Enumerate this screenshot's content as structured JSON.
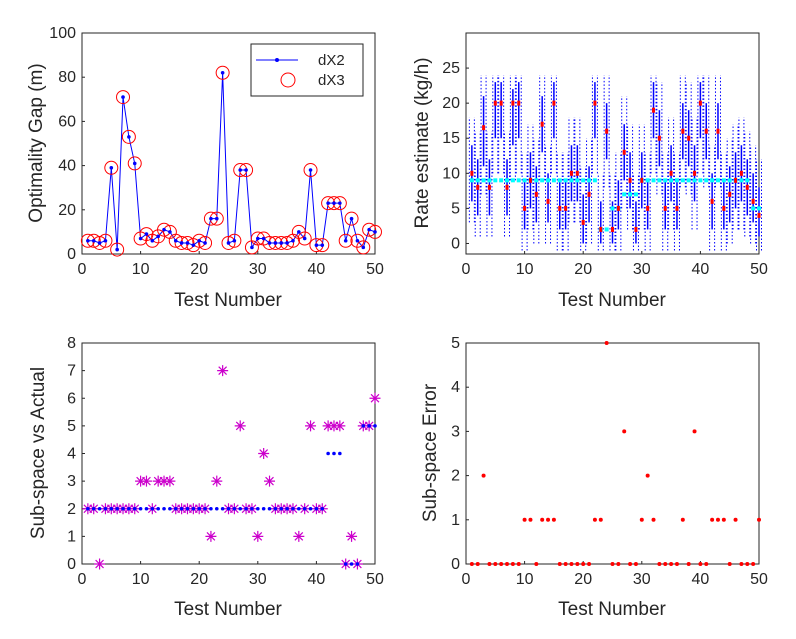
{
  "chart_data": [
    {
      "type": "line",
      "panel": "top-left",
      "xlabel": "Test Number",
      "ylabel": "Optimality Gap (m)",
      "xlim": [
        0,
        50
      ],
      "ylim": [
        0,
        100
      ],
      "xticks": [
        0,
        10,
        20,
        30,
        40,
        50
      ],
      "yticks": [
        0,
        20,
        40,
        60,
        80,
        100
      ],
      "legend_position": "top-right",
      "series": [
        {
          "name": "dX2",
          "style": "line-with-dots",
          "color": "#0000ff",
          "x": [
            1,
            2,
            3,
            4,
            5,
            6,
            7,
            8,
            9,
            10,
            11,
            12,
            13,
            14,
            15,
            16,
            17,
            18,
            19,
            20,
            21,
            22,
            23,
            24,
            25,
            26,
            27,
            28,
            29,
            30,
            31,
            32,
            33,
            34,
            35,
            36,
            37,
            38,
            39,
            40,
            41,
            42,
            43,
            44,
            45,
            46,
            47,
            48,
            49,
            50
          ],
          "values": [
            6,
            6,
            5,
            6,
            39,
            2,
            71,
            53,
            41,
            7,
            9,
            6,
            8,
            11,
            10,
            6,
            5,
            5,
            4,
            6,
            5,
            16,
            16,
            82,
            5,
            6,
            38,
            38,
            3,
            7,
            7,
            5,
            5,
            5,
            5,
            6,
            10,
            7,
            38,
            4,
            4,
            23,
            23,
            23,
            6,
            16,
            6,
            3,
            11,
            10
          ]
        },
        {
          "name": "dX3",
          "style": "open-circles",
          "color": "#ff0000",
          "x": [
            1,
            2,
            3,
            4,
            5,
            6,
            7,
            8,
            9,
            10,
            11,
            12,
            13,
            14,
            15,
            16,
            17,
            18,
            19,
            20,
            21,
            22,
            23,
            24,
            25,
            26,
            27,
            28,
            29,
            30,
            31,
            32,
            33,
            34,
            35,
            36,
            37,
            38,
            39,
            40,
            41,
            42,
            43,
            44,
            45,
            46,
            47,
            48,
            49,
            50
          ],
          "values": [
            6,
            6,
            5,
            6,
            39,
            2,
            71,
            53,
            41,
            7,
            9,
            6,
            8,
            11,
            10,
            6,
            5,
            5,
            4,
            6,
            5,
            16,
            16,
            82,
            5,
            6,
            38,
            38,
            3,
            7,
            7,
            5,
            5,
            5,
            5,
            6,
            10,
            7,
            38,
            4,
            4,
            23,
            23,
            23,
            6,
            16,
            6,
            3,
            11,
            10
          ]
        }
      ]
    },
    {
      "type": "errorbar",
      "panel": "top-right",
      "xlabel": "Test Number",
      "ylabel": "Rate estimate (kg/h)",
      "xlim": [
        0,
        50
      ],
      "ylim": [
        -1.5,
        30
      ],
      "xticks": [
        0,
        10,
        20,
        30,
        40,
        50
      ],
      "yticks": [
        0,
        5,
        10,
        15,
        20,
        25
      ],
      "x": [
        1,
        2,
        3,
        4,
        5,
        6,
        7,
        8,
        9,
        10,
        11,
        12,
        13,
        14,
        15,
        16,
        17,
        18,
        19,
        20,
        21,
        22,
        23,
        24,
        25,
        26,
        27,
        28,
        29,
        30,
        31,
        32,
        33,
        34,
        35,
        36,
        37,
        38,
        39,
        40,
        41,
        42,
        43,
        44,
        45,
        46,
        47,
        48,
        49,
        50
      ],
      "estimate": [
        10,
        8,
        16.5,
        8,
        20,
        20,
        8,
        20,
        20,
        5,
        9,
        7,
        17,
        6,
        20,
        5,
        5,
        10,
        10,
        3,
        7,
        20,
        2,
        16,
        2,
        5,
        13,
        9,
        2,
        9,
        5,
        19,
        15,
        5,
        10,
        5,
        16,
        15,
        10,
        20,
        16,
        6,
        16,
        5,
        7,
        9,
        10,
        8,
        6,
        4
      ],
      "inner_lo": [
        6,
        4,
        11,
        4,
        15,
        15,
        4,
        14,
        15,
        2,
        5,
        3,
        13,
        3,
        15,
        2,
        2,
        6,
        6,
        0,
        3,
        15,
        0,
        12,
        0,
        2,
        9,
        5,
        0,
        5,
        2,
        15,
        11,
        2,
        6,
        2,
        12,
        11,
        6,
        15,
        12,
        2,
        12,
        2,
        3,
        5,
        6,
        4,
        3,
        1
      ],
      "inner_hi": [
        14,
        12,
        21,
        12,
        23,
        23,
        12,
        22,
        23,
        9,
        13,
        11,
        21,
        10,
        23,
        9,
        9,
        14,
        14,
        7,
        11,
        23,
        6,
        20,
        6,
        9,
        17,
        13,
        6,
        13,
        9,
        23,
        19,
        9,
        14,
        9,
        20,
        19,
        14,
        23,
        20,
        10,
        20,
        9,
        11,
        13,
        14,
        12,
        10,
        8
      ],
      "outer_lo": [
        3,
        1,
        7,
        1,
        10,
        10,
        1,
        9,
        10,
        -1,
        2,
        0,
        9,
        0,
        10,
        -1,
        -1,
        3,
        3,
        -1,
        0,
        10,
        -1,
        8,
        -1,
        -1,
        5,
        2,
        -1,
        2,
        -1,
        10,
        7,
        -1,
        2,
        -1,
        8,
        7,
        2,
        10,
        8,
        -1,
        8,
        -1,
        0,
        2,
        2,
        1,
        0,
        -1
      ],
      "outer_hi": [
        18,
        16,
        24,
        16,
        24,
        24,
        16,
        24,
        24,
        13,
        17,
        15,
        24,
        14,
        24,
        13,
        13,
        18,
        18,
        11,
        15,
        24,
        10,
        24,
        10,
        13,
        21,
        17,
        10,
        17,
        13,
        24,
        23,
        13,
        18,
        13,
        24,
        23,
        18,
        24,
        24,
        14,
        24,
        13,
        15,
        17,
        18,
        16,
        14,
        12
      ],
      "reference_x": [
        1,
        2,
        3,
        4,
        5,
        6,
        7,
        8,
        9,
        10,
        11,
        12,
        13,
        14,
        15,
        16,
        17,
        18,
        19,
        20,
        21,
        22,
        23,
        24,
        25,
        26,
        27,
        28,
        29,
        30,
        31,
        32,
        33,
        34,
        35,
        36,
        37,
        38,
        39,
        40,
        41,
        42,
        43,
        44,
        45,
        46,
        47,
        48,
        49,
        50
      ],
      "reference": [
        9,
        9,
        9,
        9,
        9,
        9,
        9,
        9,
        9,
        9,
        9,
        9,
        9,
        9,
        9,
        9,
        9,
        9,
        9,
        9,
        9,
        9,
        2,
        2,
        5,
        5,
        7,
        7,
        7,
        9,
        9,
        9,
        9,
        9,
        9,
        9,
        9,
        9,
        9,
        9,
        9,
        9,
        9,
        9,
        9,
        9,
        9,
        9,
        5,
        5
      ],
      "colors": {
        "estimate": "#ff0000",
        "inner": "#0000ff",
        "outer": "#0000ff",
        "reference": "#00ffff"
      }
    },
    {
      "type": "scatter",
      "panel": "bottom-left",
      "xlabel": "Test Number",
      "ylabel": "Sub-space vs Actual",
      "xlim": [
        0,
        50
      ],
      "ylim": [
        0,
        8
      ],
      "xticks": [
        0,
        10,
        20,
        30,
        40,
        50
      ],
      "yticks": [
        0,
        1,
        2,
        3,
        4,
        5,
        6,
        7,
        8
      ],
      "series": [
        {
          "name": "Sub-space",
          "marker": "dot",
          "color": "#0000ff",
          "x": [
            1,
            2,
            3,
            4,
            5,
            6,
            7,
            8,
            9,
            10,
            11,
            12,
            13,
            14,
            15,
            16,
            17,
            18,
            19,
            20,
            21,
            22,
            23,
            24,
            25,
            26,
            27,
            28,
            29,
            30,
            31,
            32,
            33,
            34,
            35,
            36,
            37,
            38,
            39,
            40,
            41,
            42,
            43,
            44,
            45,
            46,
            47,
            48,
            49,
            50
          ],
          "values": [
            2,
            2,
            2,
            2,
            2,
            2,
            2,
            2,
            2,
            2,
            2,
            2,
            2,
            2,
            2,
            2,
            2,
            2,
            2,
            2,
            2,
            2,
            2,
            2,
            2,
            2,
            2,
            2,
            2,
            2,
            2,
            2,
            2,
            2,
            2,
            2,
            2,
            2,
            2,
            2,
            2,
            4,
            4,
            4,
            0,
            0,
            0,
            5,
            5,
            5
          ]
        },
        {
          "name": "Actual",
          "marker": "asterisk",
          "color": "#cc00cc",
          "x": [
            1,
            2,
            3,
            4,
            5,
            6,
            7,
            8,
            9,
            10,
            11,
            12,
            13,
            14,
            15,
            16,
            17,
            18,
            19,
            20,
            21,
            22,
            23,
            24,
            25,
            26,
            27,
            28,
            29,
            30,
            31,
            32,
            33,
            34,
            35,
            36,
            37,
            38,
            39,
            40,
            41,
            42,
            43,
            44,
            45,
            46,
            47,
            48,
            49,
            50
          ],
          "values": [
            2,
            2,
            0,
            2,
            2,
            2,
            2,
            2,
            2,
            3,
            3,
            2,
            3,
            3,
            3,
            2,
            2,
            2,
            2,
            2,
            2,
            1,
            3,
            7,
            2,
            2,
            5,
            2,
            2,
            1,
            4,
            3,
            2,
            2,
            2,
            2,
            1,
            2,
            5,
            2,
            2,
            5,
            5,
            5,
            0,
            1,
            0,
            5,
            5,
            6
          ]
        }
      ]
    },
    {
      "type": "scatter",
      "panel": "bottom-right",
      "xlabel": "Test Number",
      "ylabel": "Sub-space Error",
      "xlim": [
        0,
        50
      ],
      "ylim": [
        0,
        5
      ],
      "xticks": [
        0,
        10,
        20,
        30,
        40,
        50
      ],
      "yticks": [
        0,
        1,
        2,
        3,
        4,
        5
      ],
      "series": [
        {
          "name": "Sub-space Error",
          "marker": "dot",
          "color": "#ff0000",
          "x": [
            1,
            2,
            3,
            4,
            5,
            6,
            7,
            8,
            9,
            10,
            11,
            12,
            13,
            14,
            15,
            16,
            17,
            18,
            19,
            20,
            21,
            22,
            23,
            24,
            25,
            26,
            27,
            28,
            29,
            30,
            31,
            32,
            33,
            34,
            35,
            36,
            37,
            38,
            39,
            40,
            41,
            42,
            43,
            44,
            45,
            46,
            47,
            48,
            49,
            50
          ],
          "values": [
            0,
            0,
            2,
            0,
            0,
            0,
            0,
            0,
            0,
            1,
            1,
            0,
            1,
            1,
            1,
            0,
            0,
            0,
            0,
            0,
            0,
            1,
            1,
            5,
            0,
            0,
            3,
            0,
            0,
            1,
            2,
            1,
            0,
            0,
            0,
            0,
            1,
            0,
            3,
            0,
            0,
            1,
            1,
            1,
            0,
            1,
            0,
            0,
            0,
            1
          ]
        }
      ]
    }
  ]
}
